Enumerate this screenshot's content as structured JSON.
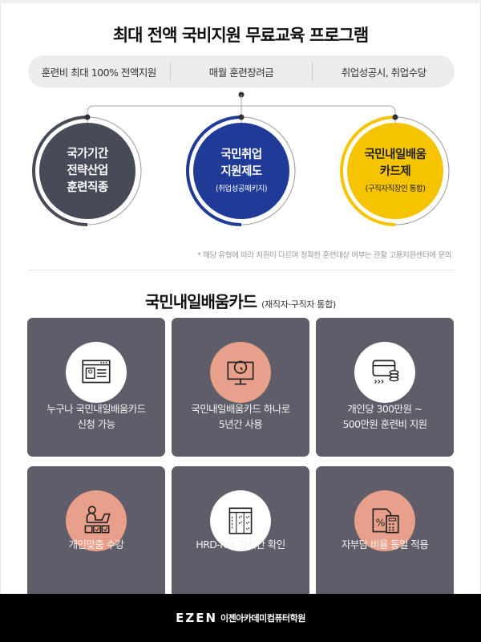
{
  "header": {
    "title": "최대 전액 국비지원 무료교육 프로그램"
  },
  "benefits": [
    "훈련비 최대 100% 전액지원",
    "매월 훈련장려금",
    "취업성공시, 취업수당"
  ],
  "programs": [
    {
      "lines": [
        "국가기간",
        "전략산업",
        "훈련직종"
      ],
      "sub": "",
      "color": "#474a57"
    },
    {
      "lines": [
        "국민취업",
        "지원제도"
      ],
      "sub": "(취업성공패키지)",
      "color": "#1f3a97"
    },
    {
      "lines": [
        "국민내일배움",
        "카드제"
      ],
      "sub": "(구직자직장인 통합)",
      "color": "#f5c300"
    }
  ],
  "note": "* 해당 유형에 따라 지원이 다르며 정확한 훈련대상 여부는 관할 고용지원센터에 문의",
  "section": {
    "title": "국민내일배움카드",
    "subtitle": "(재직자·구직자 통합)"
  },
  "cards": [
    {
      "lines": [
        "누구나 국민내일배움카드",
        "신청 가능"
      ],
      "icon": "id-card-window-icon",
      "bg": "#ffffff"
    },
    {
      "lines": [
        "국민내일배움카드 하나로",
        "5년간 사용"
      ],
      "icon": "monitor-timer-icon",
      "bg": "#e9a08a"
    },
    {
      "lines": [
        "개인당 300만원 ~",
        "500만원 훈련비 지원"
      ],
      "icon": "card-coins-icon",
      "bg": "#ffffff"
    },
    {
      "lines": [
        "개인맞춤 수강"
      ],
      "icon": "person-laptop-checklist-icon",
      "bg": "#e9a08a"
    },
    {
      "lines": [
        "HRD-Net 실시간 확인"
      ],
      "icon": "checklist-table-icon",
      "bg": "#ffffff"
    },
    {
      "lines": [
        "자부담 비율 동일 적용"
      ],
      "icon": "percent-calculator-icon",
      "bg": "#e9a08a"
    }
  ],
  "footer": {
    "brand": "EZEN",
    "name": "이젠아카데미컴퓨터학원"
  }
}
